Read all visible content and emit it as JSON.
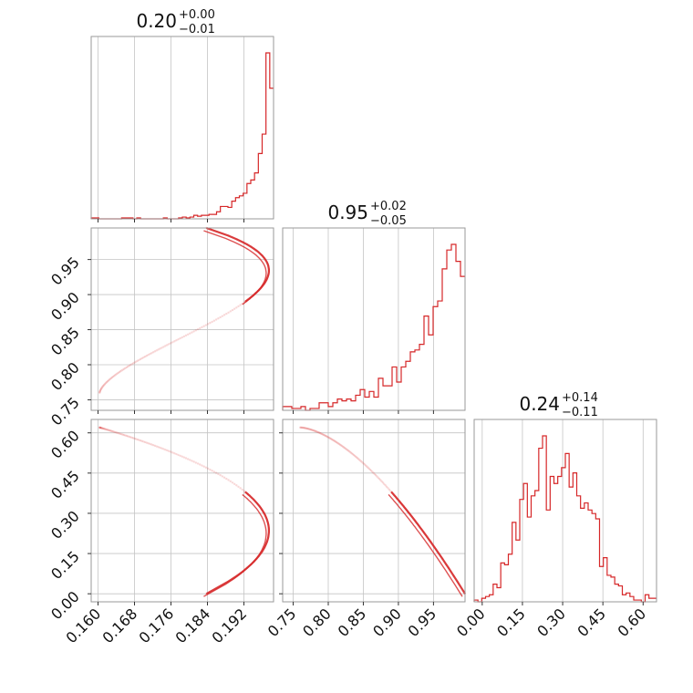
{
  "accent_color": "#d62728",
  "chart_data": {
    "type": "corner",
    "grid": true,
    "parameters": [
      {
        "range": [
          0.1585,
          0.1985
        ],
        "ticks": [
          0.16,
          0.168,
          0.176,
          0.184,
          0.192
        ],
        "tick_labels": [
          "0.160",
          "0.168",
          "0.176",
          "0.184",
          "0.192"
        ]
      },
      {
        "range": [
          0.735,
          0.995
        ],
        "ticks": [
          0.75,
          0.8,
          0.85,
          0.9,
          0.95
        ],
        "tick_labels": [
          "0.75",
          "0.80",
          "0.85",
          "0.90",
          "0.95"
        ]
      },
      {
        "range": [
          -0.03,
          0.65
        ],
        "ticks": [
          0.0,
          0.15,
          0.3,
          0.45,
          0.6
        ],
        "tick_labels": [
          "0.00",
          "0.15",
          "0.30",
          "0.45",
          "0.60"
        ]
      }
    ],
    "titles": [
      {
        "value": "0.20",
        "plus": "+0.00",
        "minus": "−0.01"
      },
      {
        "value": "0.95",
        "plus": "+0.02",
        "minus": "−0.05"
      },
      {
        "value": "0.24",
        "plus": "+0.14",
        "minus": "−0.11"
      }
    ],
    "histograms": [
      {
        "heights": [
          1,
          1,
          0,
          0,
          0,
          0,
          0,
          0,
          1,
          1,
          1,
          0,
          1,
          0,
          0,
          0,
          0,
          0,
          0,
          1,
          0,
          0,
          0,
          1,
          2,
          1,
          2,
          4,
          3,
          4,
          4,
          5,
          5,
          8,
          14,
          14,
          13,
          20,
          24,
          26,
          29,
          40,
          44,
          52,
          74,
          96,
          188,
          148
        ]
      },
      {
        "heights": [
          2,
          2,
          1,
          1,
          2,
          0,
          1,
          1,
          4,
          4,
          2,
          4,
          6,
          5,
          6,
          5,
          8,
          11,
          7,
          10,
          7,
          17,
          13,
          13,
          23,
          15,
          23,
          26,
          31,
          32,
          35,
          50,
          40,
          55,
          58,
          75,
          85,
          88,
          79,
          71
        ]
      },
      {
        "heights": [
          1,
          0,
          2,
          3,
          4,
          10,
          8,
          22,
          21,
          27,
          45,
          35,
          58,
          67,
          48,
          60,
          63,
          87,
          94,
          52,
          71,
          67,
          71,
          76,
          84,
          65,
          73,
          60,
          53,
          56,
          52,
          50,
          47,
          20,
          25,
          15,
          14,
          10,
          9,
          4,
          5,
          3,
          1,
          1,
          0,
          4,
          2,
          2
        ]
      }
    ],
    "pairs": [
      {
        "x_param": 0,
        "y_param": 1
      },
      {
        "x_param": 0,
        "y_param": 2
      },
      {
        "x_param": 1,
        "y_param": 2
      }
    ],
    "relationship": {
      "description_points_p0": [
        0.166,
        0.17,
        0.176,
        0.18,
        0.184,
        0.187,
        0.189,
        0.191,
        0.193,
        0.195,
        0.196,
        0.197,
        0.1975,
        0.1978,
        0.198
      ],
      "description_points_p1": [
        0.76,
        0.78,
        0.805,
        0.82,
        0.84,
        0.855,
        0.87,
        0.885,
        0.9,
        0.915,
        0.925,
        0.935,
        0.945,
        0.955,
        0.965
      ]
    }
  }
}
